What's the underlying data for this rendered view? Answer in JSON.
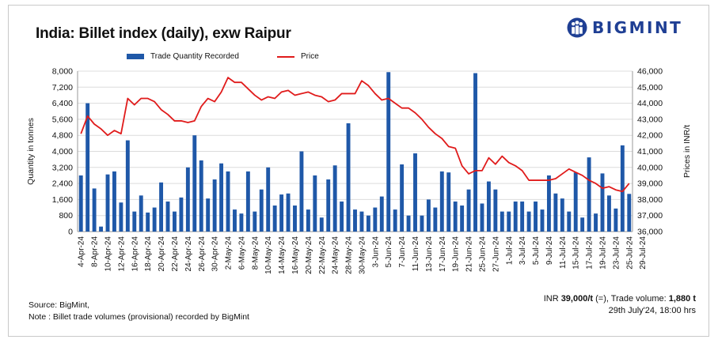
{
  "title": "India: Billet index (daily), exw Raipur",
  "brand": {
    "name": "BIGMINT"
  },
  "legend": {
    "bar_label": "Trade Quantity Recorded",
    "line_label": "Price"
  },
  "footer": {
    "source": "Source: BigMint,",
    "note": "Note : Billet trade volumes (provisional) recorded by BigMint"
  },
  "info": {
    "price_prefix": "INR ",
    "price_value": "39,000/t",
    "price_change": " (=), Trade volume: ",
    "volume_value": "1,880 t",
    "timestamp": "29th July'24, 18:00 hrs"
  },
  "colors": {
    "bar": "#1f58a8",
    "line": "#e01b1b",
    "brand": "#1f3f94"
  },
  "chart_data": {
    "type": "bar+line",
    "title": "India: Billet index (daily), exw Raipur",
    "ylabel": "Quantity in tonnes",
    "y2label": "Prices in INR/t",
    "ylim": [
      0,
      8000
    ],
    "y2lim": [
      36000,
      46000
    ],
    "yticks": [
      "0",
      "800",
      "1,600",
      "2,400",
      "3,200",
      "4,000",
      "4,800",
      "5,600",
      "6,400",
      "7,200",
      "8,000"
    ],
    "y2ticks": [
      "36,000",
      "37,000",
      "38,000",
      "39,000",
      "40,000",
      "41,000",
      "42,000",
      "43,000",
      "44,000",
      "45,000",
      "46,000"
    ],
    "xtick_labels": [
      "4-Apr-24",
      "8-Apr-24",
      "10-Apr-24",
      "12-Apr-24",
      "16-Apr-24",
      "18-Apr-24",
      "20-Apr-24",
      "22-Apr-24",
      "24-Apr-24",
      "26-Apr-24",
      "30-Apr-24",
      "2-May-24",
      "6-May-24",
      "8-May-24",
      "10-May-24",
      "14-May-24",
      "16-May-24",
      "20-May-24",
      "22-May-24",
      "24-May-24",
      "28-May-24",
      "30-May-24",
      "3-Jun-24",
      "5-Jun-24",
      "7-Jun-24",
      "11-Jun-24",
      "13-Jun-24",
      "17-Jun-24",
      "19-Jun-24",
      "21-Jun-24",
      "25-Jun-24",
      "27-Jun-24",
      "1-Jul-24",
      "3-Jul-24",
      "5-Jul-24",
      "9-Jul-24",
      "11-Jul-24",
      "15-Jul-24",
      "17-Jul-24",
      "19-Jul-24",
      "23-Jul-24",
      "25-Jul-24",
      "29-Jul-24"
    ],
    "series": [
      {
        "name": "Trade Quantity Recorded",
        "type": "bar",
        "values": [
          2800,
          6400,
          2150,
          250,
          2850,
          3000,
          1450,
          4550,
          1000,
          1800,
          950,
          1200,
          2450,
          1500,
          1000,
          1700,
          3200,
          4800,
          3550,
          1650,
          2600,
          3400,
          3000,
          1100,
          900,
          3000,
          1000,
          2100,
          3200,
          1300,
          1850,
          1900,
          1300,
          4000,
          1100,
          2800,
          700,
          2600,
          3300,
          1500,
          5400,
          1100,
          1000,
          800,
          1200,
          1750,
          7950,
          1100,
          3350,
          800,
          3900,
          800,
          1600,
          1200,
          3000,
          2950,
          1500,
          1300,
          2100,
          7900,
          1400,
          2500,
          2100,
          1000,
          1000,
          1500,
          1500,
          1000,
          1500,
          1100,
          2800,
          1900,
          1650,
          1000,
          2950,
          700,
          3700,
          900,
          2900,
          1800,
          1150,
          4300,
          1880
        ]
      },
      {
        "name": "Price",
        "type": "line",
        "values": [
          42100,
          43200,
          42700,
          42400,
          42000,
          42300,
          42100,
          44300,
          43900,
          44300,
          44300,
          44100,
          43600,
          43300,
          42900,
          42900,
          42800,
          42900,
          43800,
          44300,
          44100,
          44700,
          45600,
          45300,
          45300,
          44900,
          44500,
          44200,
          44400,
          44300,
          44700,
          44800,
          44500,
          44600,
          44700,
          44500,
          44400,
          44100,
          44200,
          44600,
          44600,
          44600,
          45400,
          45100,
          44600,
          44200,
          44300,
          44000,
          43700,
          43700,
          43400,
          43000,
          42500,
          42100,
          41800,
          41300,
          41200,
          40100,
          39600,
          39800,
          39800,
          40600,
          40200,
          40700,
          40300,
          40100,
          39800,
          39200,
          39200,
          39200,
          39200,
          39300,
          39600,
          39900,
          39700,
          39500,
          39200,
          39000,
          38700,
          38800,
          38600,
          38500,
          39000
        ]
      }
    ]
  }
}
